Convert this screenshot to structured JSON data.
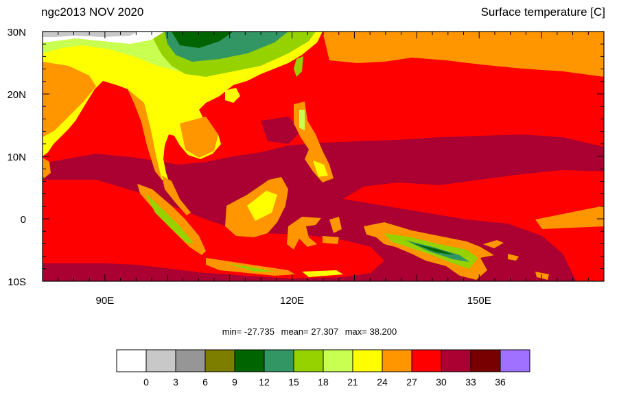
{
  "header": {
    "left_title": "ngc2013 NOV 2020",
    "right_title": "Surface temperature [C]"
  },
  "axes": {
    "lon_range": [
      80,
      170
    ],
    "lat_range": [
      -10,
      30
    ],
    "x_ticks": [
      {
        "value": 90,
        "label": "90E"
      },
      {
        "value": 120,
        "label": "120E"
      },
      {
        "value": 150,
        "label": "150E"
      }
    ],
    "y_ticks": [
      {
        "value": 30,
        "label": "30N"
      },
      {
        "value": 20,
        "label": "20N"
      },
      {
        "value": 10,
        "label": "10N"
      },
      {
        "value": 0,
        "label": "0"
      },
      {
        "value": -10,
        "label": "10S"
      }
    ]
  },
  "stats": {
    "min": "min= -27.735",
    "mean": "mean= 27.307",
    "max": "max= 38.200"
  },
  "colorbar": {
    "colors": [
      "#ffffff",
      "#c8c8c8",
      "#969696",
      "#7d7d00",
      "#006400",
      "#329664",
      "#96d200",
      "#c8ff50",
      "#ffff00",
      "#ff9600",
      "#ff0000",
      "#aa0032",
      "#780000",
      "#a070ff"
    ],
    "labels": [
      "0",
      "3",
      "6",
      "9",
      "12",
      "15",
      "18",
      "21",
      "24",
      "27",
      "30",
      "33",
      "36"
    ]
  },
  "legend_colors": {
    "sea_hot": "#aa0032",
    "sea_warm": "#ff0000",
    "sea_cool": "#ff9600",
    "land_24": "#ffff00",
    "land_21": "#c8ff50",
    "land_18": "#96d200",
    "land_15": "#329664",
    "land_12": "#006400",
    "land_0": "#ffffff"
  }
}
